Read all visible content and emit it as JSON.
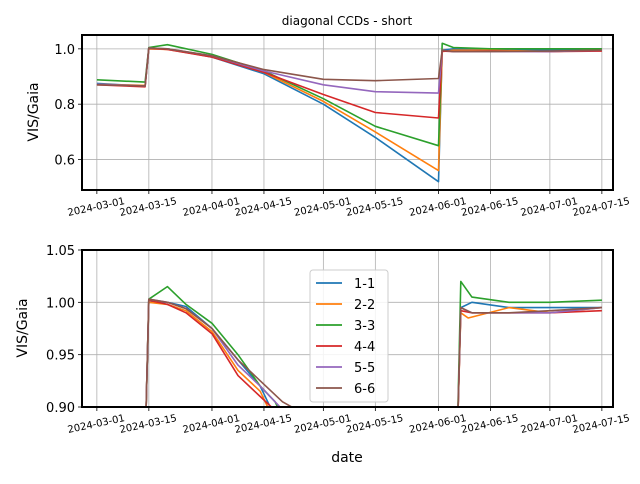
{
  "chart_data": [
    {
      "type": "line",
      "title": "diagonal CCDs - short",
      "xlabel": "",
      "ylabel": "VIS/Gaia",
      "ylim": [
        0.49,
        1.05
      ],
      "yticks": [
        0.6,
        0.8,
        1.0
      ],
      "ytick_labels": [
        "0.6",
        "0.8",
        "1.0"
      ],
      "grid": true,
      "legend": "none",
      "xlim": [
        "2024-02-26",
        "2024-07-18"
      ],
      "xticks": [
        "2024-03-01",
        "2024-03-15",
        "2024-04-01",
        "2024-04-15",
        "2024-05-01",
        "2024-05-15",
        "2024-06-01",
        "2024-06-15",
        "2024-07-01",
        "2024-07-15"
      ],
      "series": [
        {
          "name": "1-1",
          "color": "#1f77b4",
          "x": [
            "2024-03-01",
            "2024-03-14",
            "2024-03-15",
            "2024-03-20",
            "2024-04-01",
            "2024-04-15",
            "2024-05-01",
            "2024-05-15",
            "2024-06-01",
            "2024-06-02",
            "2024-06-05",
            "2024-06-15",
            "2024-07-01",
            "2024-07-15"
          ],
          "y": [
            0.875,
            0.865,
            1.0,
            1.0,
            0.97,
            0.91,
            0.8,
            0.68,
            0.52,
            0.995,
            1.0,
            0.995,
            0.995,
            0.995
          ]
        },
        {
          "name": "2-2",
          "color": "#ff7f0e",
          "x": [
            "2024-03-01",
            "2024-03-14",
            "2024-03-15",
            "2024-03-20",
            "2024-04-01",
            "2024-04-15",
            "2024-05-01",
            "2024-05-15",
            "2024-06-01",
            "2024-06-02",
            "2024-06-05",
            "2024-06-15",
            "2024-07-01",
            "2024-07-15"
          ],
          "y": [
            0.872,
            0.868,
            1.0,
            0.998,
            0.972,
            0.915,
            0.81,
            0.7,
            0.56,
            0.99,
            0.995,
            0.995,
            0.99,
            0.995
          ]
        },
        {
          "name": "3-3",
          "color": "#2ca02c",
          "x": [
            "2024-03-01",
            "2024-03-14",
            "2024-03-15",
            "2024-03-20",
            "2024-04-01",
            "2024-04-15",
            "2024-05-01",
            "2024-05-15",
            "2024-06-01",
            "2024-06-02",
            "2024-06-05",
            "2024-06-15",
            "2024-07-01",
            "2024-07-15"
          ],
          "y": [
            0.888,
            0.88,
            1.005,
            1.015,
            0.98,
            0.92,
            0.82,
            0.72,
            0.65,
            1.02,
            1.005,
            1.0,
            1.0,
            1.0
          ]
        },
        {
          "name": "4-4",
          "color": "#d62728",
          "x": [
            "2024-03-01",
            "2024-03-14",
            "2024-03-15",
            "2024-03-20",
            "2024-04-01",
            "2024-04-15",
            "2024-05-01",
            "2024-05-15",
            "2024-06-01",
            "2024-06-02",
            "2024-06-05",
            "2024-06-15",
            "2024-07-01",
            "2024-07-15"
          ],
          "y": [
            0.87,
            0.863,
            1.002,
            0.998,
            0.97,
            0.915,
            0.835,
            0.77,
            0.75,
            0.992,
            0.99,
            0.992,
            0.99,
            0.992
          ]
        },
        {
          "name": "5-5",
          "color": "#9467bd",
          "x": [
            "2024-03-01",
            "2024-03-14",
            "2024-03-15",
            "2024-03-20",
            "2024-04-01",
            "2024-04-15",
            "2024-05-01",
            "2024-05-15",
            "2024-06-01",
            "2024-06-02",
            "2024-06-05",
            "2024-06-15",
            "2024-07-01",
            "2024-07-15"
          ],
          "y": [
            0.872,
            0.866,
            1.003,
            1.0,
            0.975,
            0.92,
            0.87,
            0.845,
            0.84,
            0.995,
            0.99,
            0.99,
            0.99,
            0.995
          ]
        },
        {
          "name": "6-6",
          "color": "#8c564b",
          "x": [
            "2024-03-01",
            "2024-03-14",
            "2024-03-15",
            "2024-03-20",
            "2024-04-01",
            "2024-04-15",
            "2024-05-01",
            "2024-05-15",
            "2024-06-01",
            "2024-06-02",
            "2024-06-05",
            "2024-06-15",
            "2024-07-01",
            "2024-07-15"
          ],
          "y": [
            0.87,
            0.866,
            1.003,
            1.0,
            0.975,
            0.925,
            0.89,
            0.885,
            0.893,
            0.995,
            0.99,
            0.99,
            0.992,
            0.995
          ]
        }
      ]
    },
    {
      "type": "line",
      "title": "",
      "xlabel": "date",
      "ylabel": "VIS/Gaia",
      "ylim": [
        0.9,
        1.05
      ],
      "yticks": [
        0.9,
        0.95,
        1.0,
        1.05
      ],
      "ytick_labels": [
        "0.90",
        "0.95",
        "1.00",
        "1.05"
      ],
      "grid": true,
      "legend": "center",
      "xlim": [
        "2024-02-26",
        "2024-07-18"
      ],
      "xticks": [
        "2024-03-01",
        "2024-03-15",
        "2024-04-01",
        "2024-04-15",
        "2024-05-01",
        "2024-05-15",
        "2024-06-01",
        "2024-06-15",
        "2024-07-01",
        "2024-07-15"
      ],
      "series": [
        {
          "name": "1-1",
          "color": "#1f77b4",
          "x": [
            "2024-03-14",
            "2024-03-15",
            "2024-03-20",
            "2024-03-25",
            "2024-04-01",
            "2024-04-08",
            "2024-04-14",
            "2024-04-16",
            "2024-04-18",
            "2024-06-06",
            "2024-06-07",
            "2024-06-10",
            "2024-06-20",
            "2024-07-01",
            "2024-07-15"
          ],
          "y": [
            0.86,
            1.0,
            1.0,
            0.996,
            0.975,
            0.945,
            0.92,
            0.905,
            0.89,
            0.86,
            0.995,
            1.0,
            0.995,
            0.995,
            0.995
          ]
        },
        {
          "name": "2-2",
          "color": "#ff7f0e",
          "x": [
            "2024-03-14",
            "2024-03-15",
            "2024-03-20",
            "2024-03-25",
            "2024-04-01",
            "2024-04-08",
            "2024-04-14",
            "2024-04-16",
            "2024-04-18",
            "2024-06-06",
            "2024-06-07",
            "2024-06-09",
            "2024-06-20",
            "2024-07-01",
            "2024-07-15"
          ],
          "y": [
            0.86,
            1.0,
            0.998,
            0.992,
            0.972,
            0.935,
            0.915,
            0.9,
            0.89,
            0.86,
            0.99,
            0.985,
            0.995,
            0.99,
            0.995
          ]
        },
        {
          "name": "3-3",
          "color": "#2ca02c",
          "x": [
            "2024-03-14",
            "2024-03-15",
            "2024-03-20",
            "2024-03-25",
            "2024-04-01",
            "2024-04-08",
            "2024-04-14",
            "2024-04-18",
            "2024-04-20",
            "2024-06-06",
            "2024-06-07",
            "2024-06-10",
            "2024-06-20",
            "2024-07-01",
            "2024-07-15"
          ],
          "y": [
            0.86,
            1.003,
            1.015,
            0.998,
            0.98,
            0.95,
            0.92,
            0.905,
            0.89,
            0.86,
            1.02,
            1.005,
            1.0,
            1.0,
            1.002
          ]
        },
        {
          "name": "4-4",
          "color": "#d62728",
          "x": [
            "2024-03-14",
            "2024-03-15",
            "2024-03-20",
            "2024-03-25",
            "2024-04-01",
            "2024-04-08",
            "2024-04-14",
            "2024-04-17",
            "2024-04-20",
            "2024-06-06",
            "2024-06-07",
            "2024-06-10",
            "2024-06-20",
            "2024-07-01",
            "2024-07-15"
          ],
          "y": [
            0.86,
            1.002,
            0.998,
            0.99,
            0.97,
            0.93,
            0.91,
            0.9,
            0.89,
            0.86,
            0.992,
            0.99,
            0.99,
            0.99,
            0.992
          ]
        },
        {
          "name": "5-5",
          "color": "#9467bd",
          "x": [
            "2024-03-14",
            "2024-03-15",
            "2024-03-20",
            "2024-03-25",
            "2024-04-01",
            "2024-04-08",
            "2024-04-14",
            "2024-04-18",
            "2024-04-22",
            "2024-06-06",
            "2024-06-07",
            "2024-06-10",
            "2024-06-20",
            "2024-07-01",
            "2024-07-15"
          ],
          "y": [
            0.86,
            1.003,
            1.0,
            0.994,
            0.975,
            0.94,
            0.92,
            0.905,
            0.89,
            0.86,
            0.995,
            0.99,
            0.99,
            0.99,
            0.995
          ]
        },
        {
          "name": "6-6",
          "color": "#8c564b",
          "x": [
            "2024-03-14",
            "2024-03-15",
            "2024-03-20",
            "2024-03-25",
            "2024-04-01",
            "2024-04-08",
            "2024-04-14",
            "2024-04-20",
            "2024-04-25",
            "2024-06-06",
            "2024-06-07",
            "2024-06-10",
            "2024-06-20",
            "2024-07-01",
            "2024-07-15"
          ],
          "y": [
            0.86,
            1.003,
            1.0,
            0.994,
            0.975,
            0.945,
            0.925,
            0.905,
            0.895,
            0.86,
            0.995,
            0.99,
            0.99,
            0.992,
            0.995
          ]
        }
      ]
    }
  ]
}
